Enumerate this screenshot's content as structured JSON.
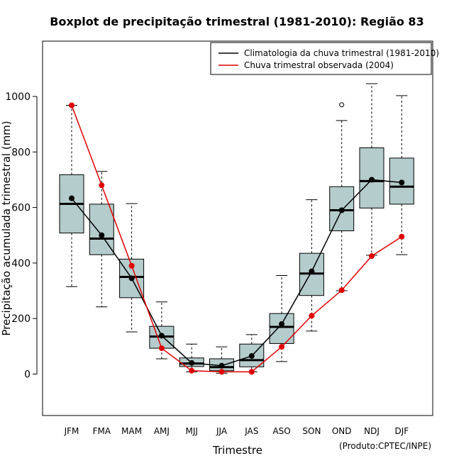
{
  "chart_data": {
    "type": "boxplot",
    "title": "Boxplot de precipitação trimestral (1981-2010): Região 83",
    "xlabel": "Trimestre",
    "ylabel": "Precipitação acumulada trimestral (mm)",
    "ylim": [
      -150,
      1150
    ],
    "yticks": [
      0,
      200,
      400,
      600,
      800,
      1000
    ],
    "credit": "(Produto:CPTEC/INPE)",
    "categories": [
      "JFM",
      "FMA",
      "MAM",
      "AMJ",
      "MJJ",
      "JJA",
      "JAS",
      "ASO",
      "SON",
      "OND",
      "NDJ",
      "DJF"
    ],
    "boxes": [
      {
        "min": 315,
        "q1": 508,
        "median": 613,
        "q3": 718,
        "max": 968,
        "outliers": []
      },
      {
        "min": 242,
        "q1": 430,
        "median": 488,
        "q3": 612,
        "max": 730,
        "outliers": []
      },
      {
        "min": 152,
        "q1": 275,
        "median": 350,
        "q3": 414,
        "max": 614,
        "outliers": []
      },
      {
        "min": 55,
        "q1": 93,
        "median": 135,
        "q3": 172,
        "max": 260,
        "outliers": []
      },
      {
        "min": 8,
        "q1": 27,
        "median": 38,
        "q3": 58,
        "max": 108,
        "outliers": []
      },
      {
        "min": 3,
        "q1": 12,
        "median": 25,
        "q3": 55,
        "max": 98,
        "outliers": []
      },
      {
        "min": 8,
        "q1": 26,
        "median": 50,
        "q3": 108,
        "max": 142,
        "outliers": []
      },
      {
        "min": 45,
        "q1": 110,
        "median": 170,
        "q3": 218,
        "max": 355,
        "outliers": []
      },
      {
        "min": 155,
        "q1": 283,
        "median": 362,
        "q3": 435,
        "max": 628,
        "outliers": []
      },
      {
        "min": 300,
        "q1": 516,
        "median": 590,
        "q3": 675,
        "max": 913,
        "outliers": [
          970
        ]
      },
      {
        "min": 428,
        "q1": 598,
        "median": 695,
        "q3": 815,
        "max": 1046,
        "outliers": []
      },
      {
        "min": 430,
        "q1": 612,
        "median": 675,
        "q3": 778,
        "max": 1003,
        "outliers": []
      }
    ],
    "series": [
      {
        "name": "Climatologia da chuva trimestral (1981-2010)",
        "color": "#000000",
        "values": [
          633,
          500,
          345,
          138,
          40,
          30,
          65,
          180,
          370,
          590,
          700,
          690
        ]
      },
      {
        "name": "Chuva trimestral observada (2004)",
        "color": "#e00000",
        "values": [
          968,
          680,
          390,
          93,
          12,
          8,
          8,
          98,
          210,
          302,
          425,
          495
        ]
      }
    ],
    "box_fill": "#b4cccb",
    "legend_position": "top-right"
  }
}
